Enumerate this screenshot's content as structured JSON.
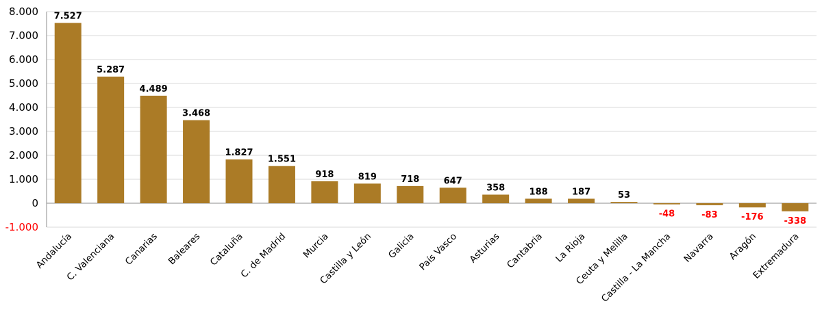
{
  "chart_data": {
    "type": "bar",
    "title": "",
    "xlabel": "",
    "ylabel": "",
    "ylim": [
      -1000,
      8000
    ],
    "yticks": [
      -1000,
      0,
      1000,
      2000,
      3000,
      4000,
      5000,
      6000,
      7000,
      8000
    ],
    "ytick_labels": [
      "-1.000",
      "0",
      "1.000",
      "2.000",
      "3.000",
      "4.000",
      "5.000",
      "6.000",
      "7.000",
      "8.000"
    ],
    "grid": true,
    "legend": "none",
    "bar_color": "#ab7b26",
    "negative_label_color": "#ff0000",
    "categories": [
      "Andalucía",
      "C. Valenciana",
      "Canarias",
      "Baleares",
      "Cataluña",
      "C. de Madrid",
      "Murcia",
      "Castilla y León",
      "Galicia",
      "País Vasco",
      "Asturias",
      "Cantabria",
      "La Rioja",
      "Ceuta y Melilla",
      "Castilla - La Mancha",
      "Navarra",
      "Aragón",
      "Extremadura"
    ],
    "values": [
      7527,
      5287,
      4489,
      3468,
      1827,
      1551,
      918,
      819,
      718,
      647,
      358,
      188,
      187,
      53,
      -48,
      -83,
      -176,
      -338
    ],
    "value_labels": [
      "7.527",
      "5.287",
      "4.489",
      "3.468",
      "1.827",
      "1.551",
      "918",
      "819",
      "718",
      "647",
      "358",
      "188",
      "187",
      "53",
      "-48",
      "-83",
      "-176",
      "-338"
    ]
  }
}
